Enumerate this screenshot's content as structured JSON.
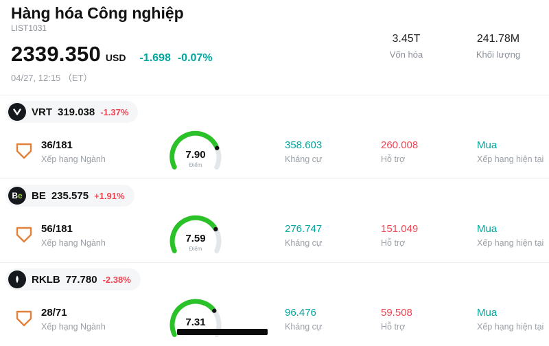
{
  "header": {
    "title": "Hàng hóa Công nghiệp",
    "subtitle": "LIST1031",
    "price": "2339.350",
    "currency": "USD",
    "change": "-1.698",
    "change_pct": "-0.07%",
    "datetime": "04/27, 12:15 （ET）",
    "stats": [
      {
        "value": "3.45T",
        "label": "Vốn hóa"
      },
      {
        "value": "241.78M",
        "label": "Khối lượng"
      }
    ]
  },
  "labels": {
    "rank_label": "Xếp hạng Ngành",
    "score_label": "Điểm",
    "resistance_label": "Kháng cự",
    "support_label": "Hỗ trợ",
    "rating_label": "Xếp hạng hiện tại"
  },
  "rows": [
    {
      "ticker": "VRT",
      "price": "319.038",
      "change_pct": "-1.37%",
      "rank": "36/181",
      "score": 7.9,
      "score_text": "7.90",
      "resistance": "358.603",
      "support": "260.008",
      "rating": "Mua"
    },
    {
      "ticker": "BE",
      "price": "235.575",
      "change_pct": "+1.91%",
      "rank": "56/181",
      "score": 7.59,
      "score_text": "7.59",
      "resistance": "276.747",
      "support": "151.049",
      "rating": "Mua"
    },
    {
      "ticker": "RKLB",
      "price": "77.780",
      "change_pct": "-2.38%",
      "rank": "28/71",
      "score": 7.31,
      "score_text": "7.31",
      "resistance": "96.476",
      "support": "59.508",
      "rating": "Mua"
    }
  ],
  "colors": {
    "teal": "#00a79d",
    "red": "#ef4452",
    "gauge_green": "#2bc128",
    "gauge_track": "#e4e7ea",
    "orange": "#e2813a",
    "be_green": "#97c93d"
  }
}
